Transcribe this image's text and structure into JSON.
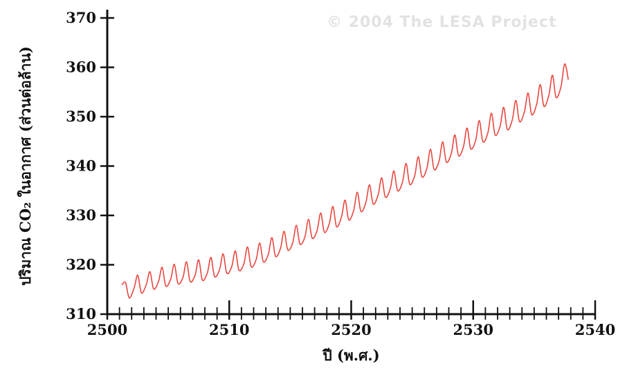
{
  "watermark": "© 2004 The LESA Project",
  "chart_data": {
    "type": "line",
    "title": "",
    "xlabel": "ปี (พ.ศ.)",
    "ylabel": "ปริมาณ CO₂ ในอากาศ (ส่วนต่อล้าน)",
    "xlim": [
      2500,
      2540
    ],
    "ylim": [
      310,
      370
    ],
    "x_ticks": [
      2500,
      2510,
      2520,
      2530,
      2540
    ],
    "y_ticks": [
      310,
      320,
      330,
      340,
      350,
      360,
      370
    ],
    "x_minor_step": 1,
    "grid": false,
    "legend": "none",
    "line_color": "#e8453c",
    "series": [
      {
        "name": "",
        "x": [
          2501.2,
          2501.5,
          2501.8,
          2502.2,
          2502.5,
          2502.8,
          2503.2,
          2503.5,
          2503.8,
          2504.2,
          2504.5,
          2504.8,
          2505.2,
          2505.5,
          2505.8,
          2506.2,
          2506.5,
          2506.8,
          2507.2,
          2507.5,
          2507.8,
          2508.2,
          2508.5,
          2508.8,
          2509.2,
          2509.5,
          2509.8,
          2510.2,
          2510.5,
          2510.8,
          2511.2,
          2511.5,
          2511.8,
          2512.2,
          2512.5,
          2512.8,
          2513.2,
          2513.5,
          2513.8,
          2514.2,
          2514.5,
          2514.8,
          2515.2,
          2515.5,
          2515.8,
          2516.2,
          2516.5,
          2516.8,
          2517.2,
          2517.5,
          2517.8,
          2518.2,
          2518.5,
          2518.8,
          2519.2,
          2519.5,
          2519.8,
          2520.2,
          2520.5,
          2520.8,
          2521.2,
          2521.5,
          2521.8,
          2522.2,
          2522.5,
          2522.8,
          2523.2,
          2523.5,
          2523.8,
          2524.2,
          2524.5,
          2524.8,
          2525.2,
          2525.5,
          2525.8,
          2526.2,
          2526.5,
          2526.8,
          2527.2,
          2527.5,
          2527.8,
          2528.2,
          2528.5,
          2528.8,
          2529.2,
          2529.5,
          2529.8,
          2530.2,
          2530.5,
          2530.8,
          2531.2,
          2531.5,
          2531.8,
          2532.2,
          2532.5,
          2532.8,
          2533.2,
          2533.5,
          2533.8,
          2534.2,
          2534.5,
          2534.8,
          2535.2,
          2535.5,
          2535.8,
          2536.2,
          2536.5,
          2536.8,
          2537.2,
          2537.5,
          2537.8
        ],
        "y": [
          315.9,
          316.4,
          313.3,
          315.3,
          317.9,
          314.3,
          316.0,
          318.6,
          315.1,
          316.6,
          319.5,
          315.7,
          317.1,
          320.1,
          316.2,
          317.4,
          320.6,
          316.6,
          317.9,
          321.0,
          316.9,
          318.3,
          321.5,
          317.6,
          319.0,
          322.2,
          318.3,
          319.6,
          322.8,
          318.9,
          320.2,
          323.6,
          319.6,
          321.0,
          324.4,
          320.6,
          322.1,
          325.5,
          321.7,
          323.3,
          326.8,
          323.0,
          324.4,
          328.0,
          324.2,
          325.6,
          329.2,
          325.4,
          326.9,
          330.5,
          326.6,
          328.3,
          331.8,
          327.7,
          329.7,
          333.1,
          329.1,
          331.0,
          334.7,
          330.8,
          332.6,
          336.2,
          332.3,
          334.1,
          337.6,
          333.7,
          335.4,
          339.0,
          335.0,
          336.7,
          340.5,
          336.3,
          338.0,
          341.9,
          337.8,
          339.5,
          343.4,
          339.3,
          341.0,
          344.9,
          340.8,
          342.5,
          346.3,
          342.1,
          343.9,
          347.7,
          343.5,
          345.2,
          349.2,
          344.9,
          346.7,
          350.7,
          346.3,
          348.0,
          351.9,
          347.4,
          349.3,
          353.3,
          349.0,
          351.0,
          354.8,
          350.4,
          352.5,
          356.5,
          352.1,
          354.3,
          358.4,
          353.9,
          356.1,
          360.7,
          357.5
        ]
      }
    ]
  }
}
